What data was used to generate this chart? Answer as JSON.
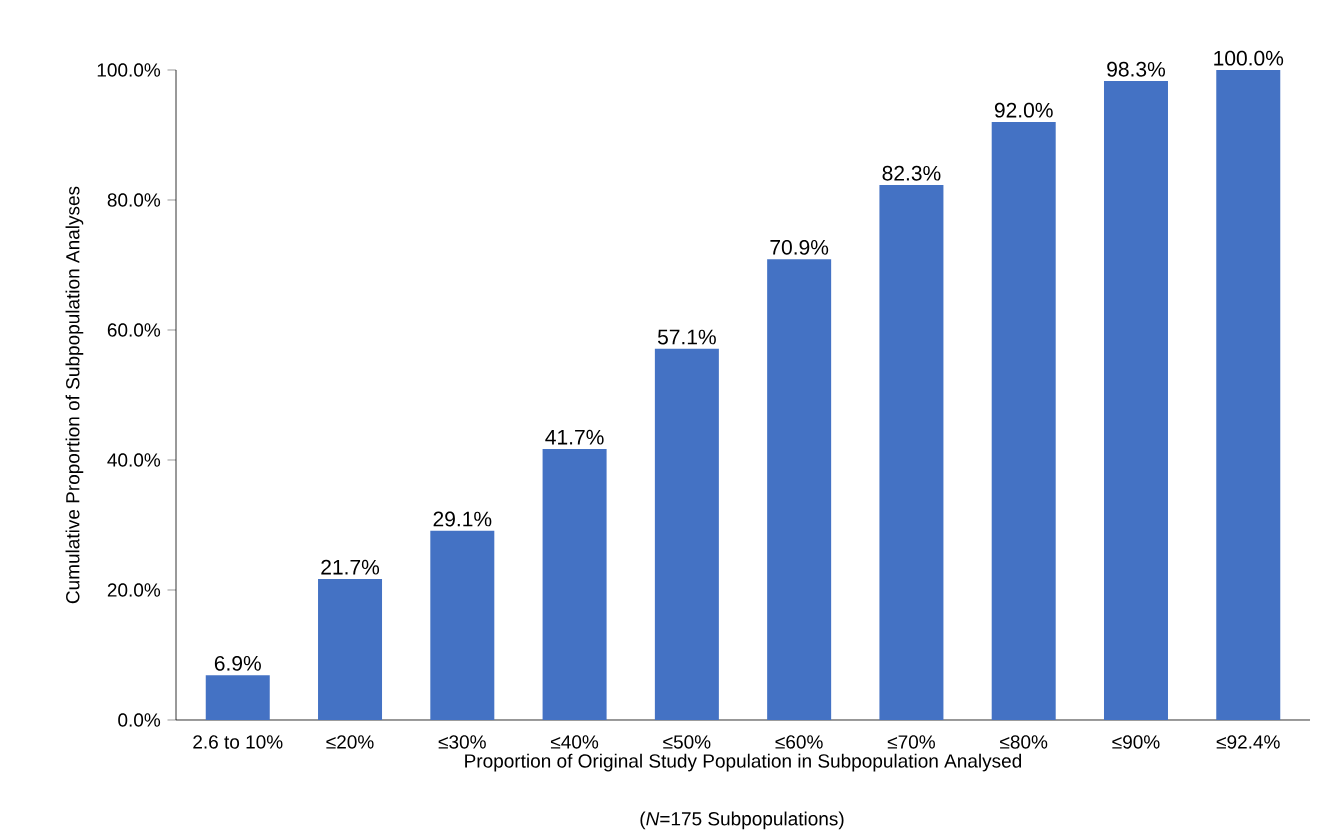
{
  "chart_data": {
    "type": "bar",
    "xlabel": "Proportion of Original Study Population in Subpopulation Analysed",
    "ylabel": "Cumulative Proportion of Subpopulation Analyses",
    "categories": [
      "2.6 to 10%",
      "≤20%",
      "≤30%",
      "≤40%",
      "≤50%",
      "≤60%",
      "≤70%",
      "≤80%",
      "≤90%",
      "≤92.4%"
    ],
    "values": [
      6.9,
      21.7,
      29.1,
      41.7,
      57.1,
      70.9,
      82.3,
      92.0,
      98.3,
      100.0
    ],
    "value_labels": [
      "6.9%",
      "21.7%",
      "29.1%",
      "41.7%",
      "57.1%",
      "70.9%",
      "82.3%",
      "92.0%",
      "98.3%",
      "100.0%"
    ],
    "color": "#4472c4",
    "ylim": [
      0,
      100
    ],
    "yticks": [
      {
        "value": 0,
        "label": "0.0%"
      },
      {
        "value": 20,
        "label": "20.0%"
      },
      {
        "value": 40,
        "label": "40.0%"
      },
      {
        "value": 60,
        "label": "60.0%"
      },
      {
        "value": 80,
        "label": "80.0%"
      },
      {
        "value": 100,
        "label": "100.0%"
      }
    ],
    "annotations": [
      "(*N*=175 Subpopulations)"
    ]
  }
}
